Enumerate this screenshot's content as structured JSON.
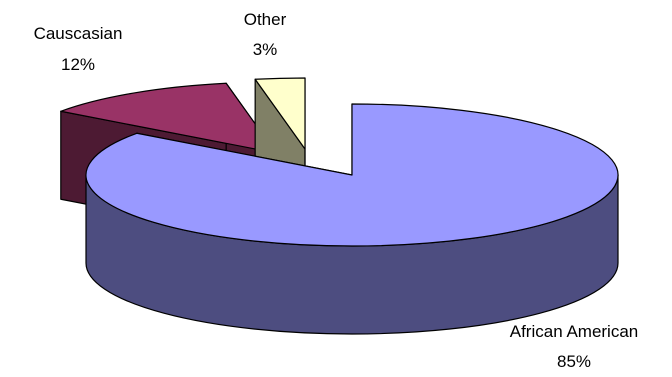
{
  "chart_data": {
    "type": "pie",
    "title": "",
    "style": "3d-exploded",
    "legend": "none",
    "slices": [
      {
        "label": "African American",
        "percent_label": "85%",
        "value": 85,
        "top_color": "#9999ff",
        "side_color": "#4d4d80"
      },
      {
        "label": "Causcasian",
        "percent_label": "12%",
        "value": 12,
        "top_color": "#993366",
        "side_color": "#4d1a33"
      },
      {
        "label": "Other",
        "percent_label": "3%",
        "value": 3,
        "top_color": "#ffffcc",
        "side_color": "#808066"
      }
    ]
  }
}
